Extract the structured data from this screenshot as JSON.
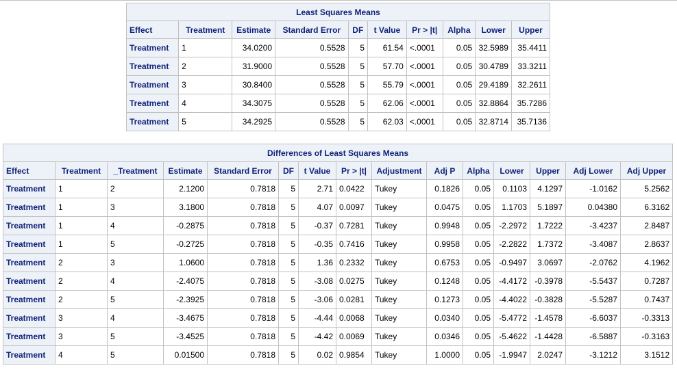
{
  "lsmeans": {
    "title": "Least Squares Means",
    "headers": [
      "Effect",
      "Treatment",
      "Estimate",
      "Standard Error",
      "DF",
      "t Value",
      "Pr > |t|",
      "Alpha",
      "Lower",
      "Upper"
    ],
    "rows": [
      [
        "Treatment",
        "1",
        "34.0200",
        "0.5528",
        "5",
        "61.54",
        "<.0001",
        "0.05",
        "32.5989",
        "35.4411"
      ],
      [
        "Treatment",
        "2",
        "31.9000",
        "0.5528",
        "5",
        "57.70",
        "<.0001",
        "0.05",
        "30.4789",
        "33.3211"
      ],
      [
        "Treatment",
        "3",
        "30.8400",
        "0.5528",
        "5",
        "55.79",
        "<.0001",
        "0.05",
        "29.4189",
        "32.2611"
      ],
      [
        "Treatment",
        "4",
        "34.3075",
        "0.5528",
        "5",
        "62.06",
        "<.0001",
        "0.05",
        "32.8864",
        "35.7286"
      ],
      [
        "Treatment",
        "5",
        "34.2925",
        "0.5528",
        "5",
        "62.03",
        "<.0001",
        "0.05",
        "32.8714",
        "35.7136"
      ]
    ]
  },
  "diffs": {
    "title": "Differences of Least Squares Means",
    "headers": [
      "Effect",
      "Treatment",
      "_Treatment",
      "Estimate",
      "Standard Error",
      "DF",
      "t Value",
      "Pr > |t|",
      "Adjustment",
      "Adj P",
      "Alpha",
      "Lower",
      "Upper",
      "Adj Lower",
      "Adj Upper"
    ],
    "rows": [
      [
        "Treatment",
        "1",
        "2",
        "2.1200",
        "0.7818",
        "5",
        "2.71",
        "0.0422",
        "Tukey",
        "0.1826",
        "0.05",
        "0.1103",
        "4.1297",
        "-1.0162",
        "5.2562"
      ],
      [
        "Treatment",
        "1",
        "3",
        "3.1800",
        "0.7818",
        "5",
        "4.07",
        "0.0097",
        "Tukey",
        "0.0475",
        "0.05",
        "1.1703",
        "5.1897",
        "0.04380",
        "6.3162"
      ],
      [
        "Treatment",
        "1",
        "4",
        "-0.2875",
        "0.7818",
        "5",
        "-0.37",
        "0.7281",
        "Tukey",
        "0.9948",
        "0.05",
        "-2.2972",
        "1.7222",
        "-3.4237",
        "2.8487"
      ],
      [
        "Treatment",
        "1",
        "5",
        "-0.2725",
        "0.7818",
        "5",
        "-0.35",
        "0.7416",
        "Tukey",
        "0.9958",
        "0.05",
        "-2.2822",
        "1.7372",
        "-3.4087",
        "2.8637"
      ],
      [
        "Treatment",
        "2",
        "3",
        "1.0600",
        "0.7818",
        "5",
        "1.36",
        "0.2332",
        "Tukey",
        "0.6753",
        "0.05",
        "-0.9497",
        "3.0697",
        "-2.0762",
        "4.1962"
      ],
      [
        "Treatment",
        "2",
        "4",
        "-2.4075",
        "0.7818",
        "5",
        "-3.08",
        "0.0275",
        "Tukey",
        "0.1248",
        "0.05",
        "-4.4172",
        "-0.3978",
        "-5.5437",
        "0.7287"
      ],
      [
        "Treatment",
        "2",
        "5",
        "-2.3925",
        "0.7818",
        "5",
        "-3.06",
        "0.0281",
        "Tukey",
        "0.1273",
        "0.05",
        "-4.4022",
        "-0.3828",
        "-5.5287",
        "0.7437"
      ],
      [
        "Treatment",
        "3",
        "4",
        "-3.4675",
        "0.7818",
        "5",
        "-4.44",
        "0.0068",
        "Tukey",
        "0.0340",
        "0.05",
        "-5.4772",
        "-1.4578",
        "-6.6037",
        "-0.3313"
      ],
      [
        "Treatment",
        "3",
        "5",
        "-3.4525",
        "0.7818",
        "5",
        "-4.42",
        "0.0069",
        "Tukey",
        "0.0346",
        "0.05",
        "-5.4622",
        "-1.4428",
        "-6.5887",
        "-0.3163"
      ],
      [
        "Treatment",
        "4",
        "5",
        "0.01500",
        "0.7818",
        "5",
        "0.02",
        "0.9854",
        "Tukey",
        "1.0000",
        "0.05",
        "-1.9947",
        "2.0247",
        "-3.1212",
        "3.1512"
      ]
    ]
  }
}
